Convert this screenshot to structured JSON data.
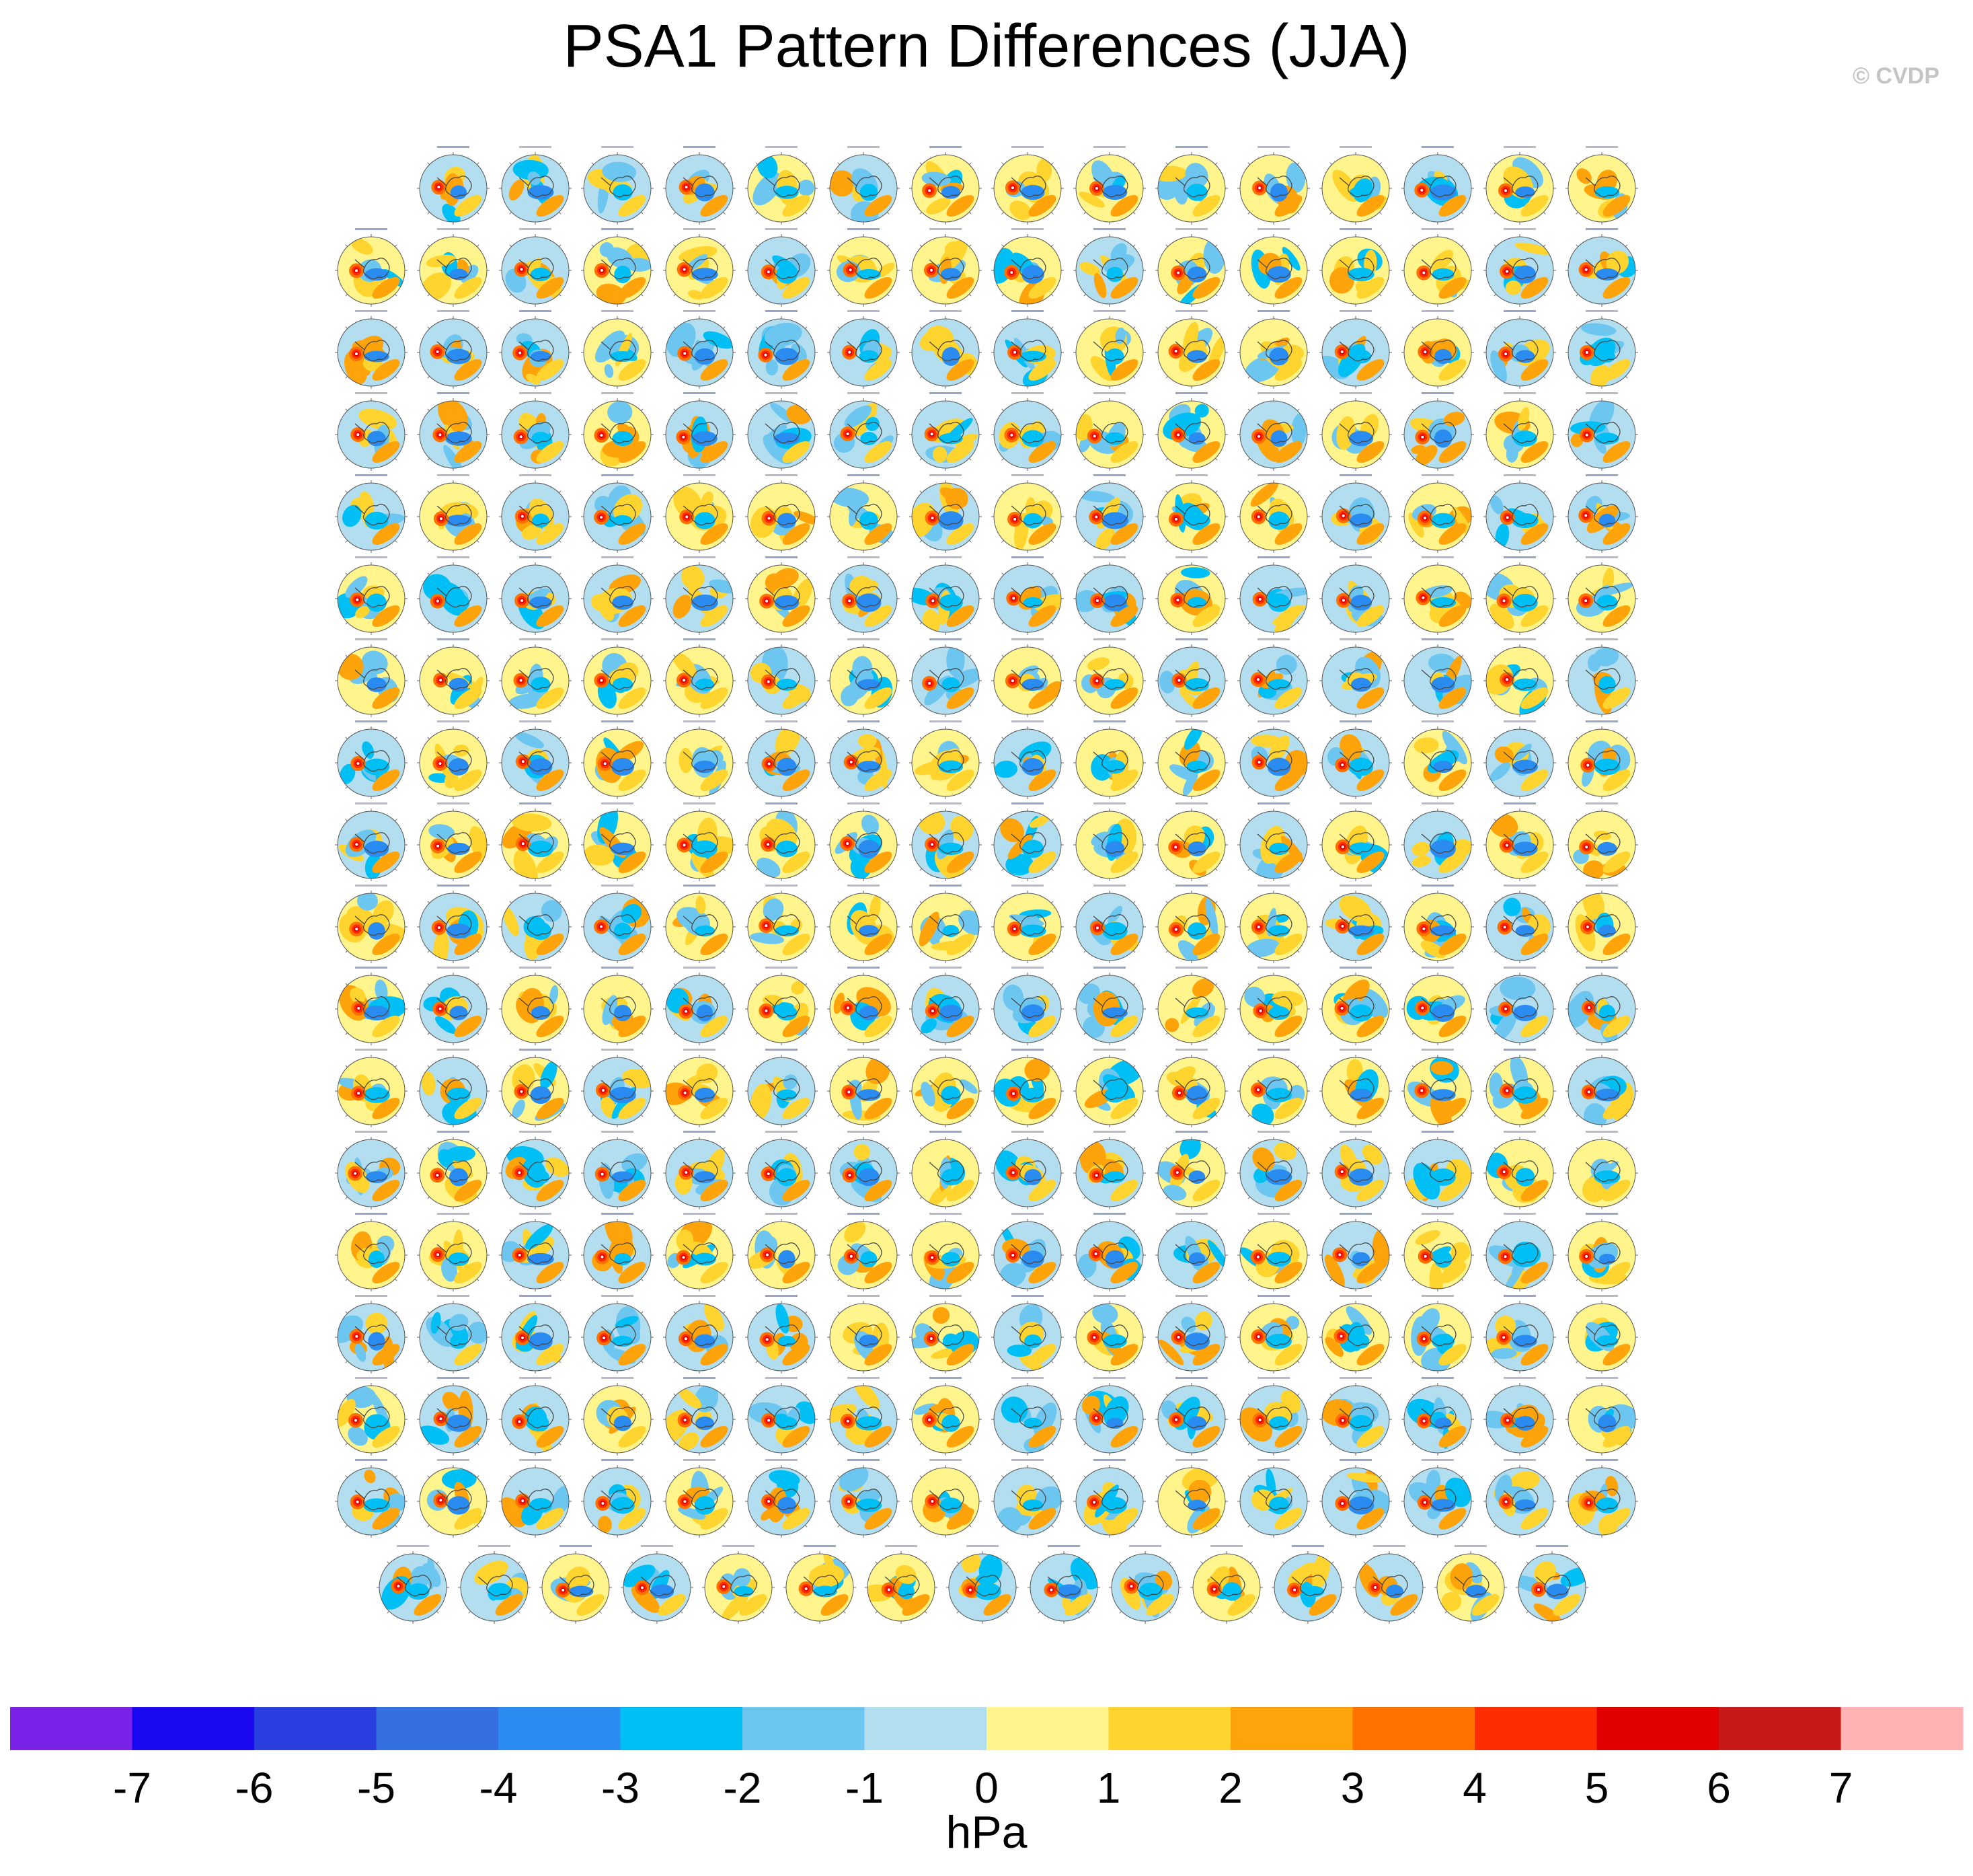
{
  "title": "PSA1 Pattern Differences (JJA)",
  "credit": "© CVDP",
  "chart_data": {
    "type": "heatmap",
    "description_kind": "panel grid of south polar stereographic maps",
    "panel_rows": [
      15,
      16,
      16,
      16,
      16,
      16,
      16,
      16,
      16,
      16,
      16,
      16,
      16,
      16,
      16,
      16,
      16,
      15
    ],
    "total_panels": 286,
    "colorbar": {
      "unit": "hPa",
      "tick_labels": [
        "-7",
        "-6",
        "-5",
        "-4",
        "-3",
        "-2",
        "-1",
        "0",
        "1",
        "2",
        "3",
        "4",
        "5",
        "6",
        "7"
      ],
      "levels": [
        -7,
        -6,
        -5,
        -4,
        -3,
        -2,
        -1,
        0,
        1,
        2,
        3,
        4,
        5,
        6,
        7
      ],
      "colors": [
        "#7a22e8",
        "#1a08f0",
        "#2a3fe0",
        "#3570e0",
        "#2a8cf0",
        "#00bff5",
        "#6dc6ef",
        "#b3def0",
        "#fff58c",
        "#ffd42e",
        "#ffa30a",
        "#ff7200",
        "#ff2d00",
        "#e00000",
        "#c81818",
        "#ffb3b5"
      ]
    }
  }
}
